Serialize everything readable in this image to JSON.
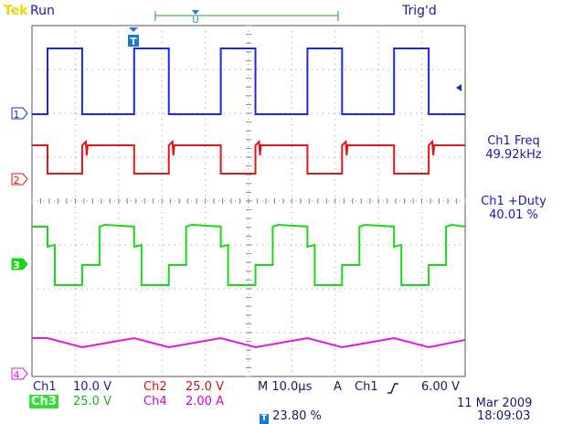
{
  "header": {
    "brand": "Tek",
    "state": "Run",
    "trigger_status": "Trig'd"
  },
  "channels": [
    {
      "id": "1",
      "color": "#1a2ad8"
    },
    {
      "id": "2",
      "color": "#e01818"
    },
    {
      "id": "3",
      "color": "#18d818"
    },
    {
      "id": "4",
      "color": "#e018e0"
    }
  ],
  "measurements": [
    {
      "name": "Ch1 Freq",
      "value": "49.92kHz"
    },
    {
      "name": "Ch1 +Duty",
      "value": "40.01 %"
    }
  ],
  "footer": {
    "ch1_label": "Ch1",
    "ch1_scale": "10.0 V",
    "ch2_label": "Ch2",
    "ch2_scale": "25.0 V",
    "ch3_label": "Ch3",
    "ch3_scale": "25.0 V",
    "ch4_label": "Ch4",
    "ch4_scale": "2.00 A",
    "timebase": "M 10.0µs",
    "trigger_mode": "A",
    "trigger_source": "Ch1",
    "trigger_slope_icon": "rising-edge-icon",
    "trigger_level": "6.00 V",
    "trigger_position": "23.80 %",
    "date": "11 Mar 2009",
    "time": "18:09:03"
  }
}
